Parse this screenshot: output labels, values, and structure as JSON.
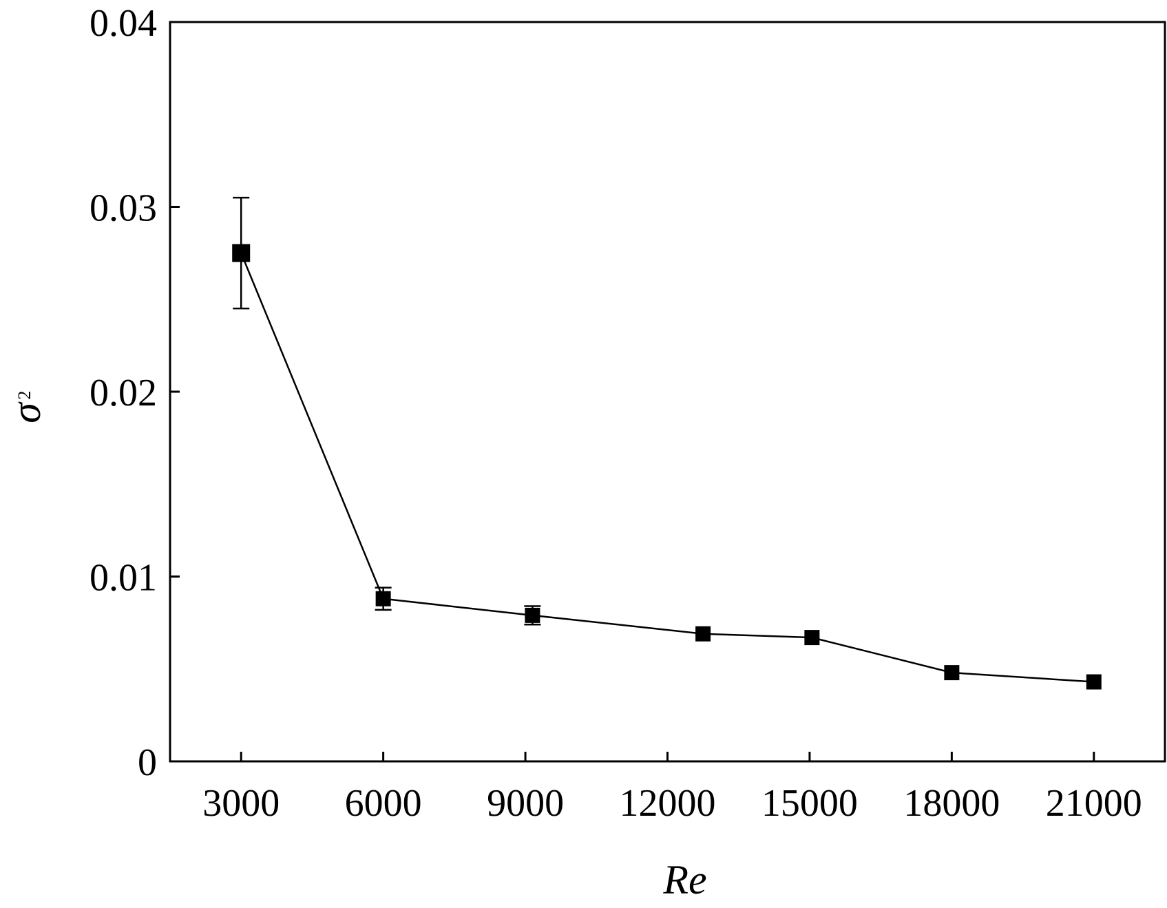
{
  "chart_data": {
    "type": "line",
    "title": "",
    "xlabel": "Re",
    "ylabel": "σ",
    "ylabel_superscript": "2",
    "xlim": [
      1500,
      22500
    ],
    "ylim": [
      0,
      0.04
    ],
    "xticks": [
      3000,
      6000,
      9000,
      12000,
      15000,
      18000,
      21000
    ],
    "xtick_labels": [
      "3000",
      "6000",
      "9000",
      "12000",
      "15000",
      "18000",
      "21000"
    ],
    "yticks": [
      0,
      0.01,
      0.02,
      0.03,
      0.04
    ],
    "ytick_labels": [
      "0",
      "0.01",
      "0.02",
      "0.03",
      "0.04"
    ],
    "grid": false,
    "marker": "square",
    "color": "#000000",
    "series": [
      {
        "x": [
          3000,
          6000,
          9150,
          12750,
          15050,
          18000,
          21000
        ],
        "y": [
          0.0275,
          0.0088,
          0.0079,
          0.0069,
          0.0067,
          0.0048,
          0.0043
        ],
        "yerr": [
          0.003,
          0.0006,
          0.0005,
          0,
          0,
          0,
          0
        ]
      }
    ]
  }
}
